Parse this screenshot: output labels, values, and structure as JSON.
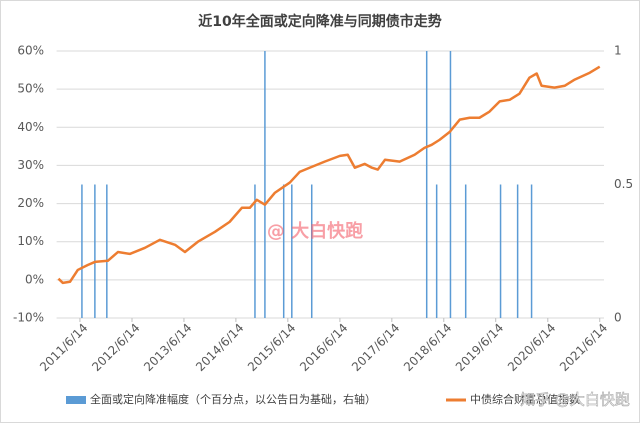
{
  "chart_data": {
    "type": "bar-line",
    "title": "近10年全面或定向降准与同期债市走势",
    "annotations": [
      "@ 大白快跑",
      "知乎 @大白快跑"
    ],
    "grid": true,
    "legend": "bottom",
    "xlim": [
      "2011/1/1",
      "2021/7/14"
    ],
    "xticks": [
      "2011/6/14",
      "2012/6/14",
      "2013/6/14",
      "2014/6/14",
      "2015/6/14",
      "2016/6/14",
      "2017/6/14",
      "2018/6/14",
      "2019/6/14",
      "2020/6/14",
      "2021/6/14"
    ],
    "ylim": [
      -10,
      60
    ],
    "yticks": [
      {
        "value": -10,
        "label": "-10%"
      },
      {
        "value": 0,
        "label": "0%"
      },
      {
        "value": 10,
        "label": "10%"
      },
      {
        "value": 20,
        "label": "20%"
      },
      {
        "value": 30,
        "label": "30%"
      },
      {
        "value": 40,
        "label": "40%"
      },
      {
        "value": 50,
        "label": "50%"
      },
      {
        "value": 60,
        "label": "60%"
      }
    ],
    "y2lim": [
      0,
      1
    ],
    "y2ticks": [
      0,
      0.5,
      1
    ],
    "series": [
      {
        "name": "全面或定向降准幅度（个百分点，以公告日为基础，右轴）",
        "type": "bar",
        "axis": "y2",
        "color": "#5b9bd5",
        "x": [
          "2011/6/28",
          "2011/9/27",
          "2011/12/20",
          "2014/10/26",
          "2015/1/4",
          "2015/5/16",
          "2015/7/12",
          "2015/11/29",
          "2018/2/14",
          "2018/4/25",
          "2018/7/31",
          "2018/11/15",
          "2019/7/18",
          "2019/11/15",
          "2020/2/21"
        ],
        "values": [
          0.5,
          0.5,
          0.5,
          0.5,
          1,
          0.5,
          0.5,
          0.5,
          1,
          0.5,
          1,
          0.5,
          0.5,
          0.5,
          0.5
        ]
      },
      {
        "name": "中债综合财富总值指数",
        "type": "line",
        "color": "#ed7d31",
        "x": [
          "2011/1/14",
          "2011/2/14",
          "2011/4/5",
          "2011/5/30",
          "2011/8/8",
          "2011/9/27",
          "2011/12/27",
          "2012/3/7",
          "2012/5/30",
          "2012/9/13",
          "2012/12/27",
          "2013/4/12",
          "2013/6/21",
          "2013/9/20",
          "2014/1/18",
          "2014/5/1",
          "2014/7/26",
          "2014/9/20",
          "2014/11/8",
          "2015/1/4",
          "2015/3/14",
          "2015/6/28",
          "2015/9/5",
          "2015/11/14",
          "2016/2/28",
          "2016/6/14",
          "2016/8/8",
          "2016/9/27",
          "2016/12/5",
          "2017/1/25",
          "2017/3/7",
          "2017/4/27",
          "2017/8/8",
          "2017/11/21",
          "2018/1/29",
          "2018/3/21",
          "2018/5/15",
          "2018/7/26",
          "2018/10/4",
          "2018/12/13",
          "2019/2/20",
          "2019/5/1",
          "2019/7/12",
          "2019/9/20",
          "2019/11/28",
          "2020/2/6",
          "2020/3/28",
          "2020/5/1",
          "2020/7/31",
          "2020/10/12",
          "2020/12/20",
          "2021/4/5",
          "2021/6/14"
        ],
        "values": [
          0.3,
          -0.8,
          -0.5,
          2.6,
          3.9,
          4.7,
          5.0,
          7.3,
          6.8,
          8.4,
          10.5,
          9.2,
          7.3,
          10.0,
          12.6,
          15.2,
          18.9,
          18.9,
          21.0,
          19.7,
          22.8,
          25.5,
          28.3,
          29.4,
          31.0,
          32.5,
          32.8,
          29.4,
          30.4,
          29.4,
          28.9,
          31.5,
          31.0,
          32.8,
          34.6,
          35.4,
          36.7,
          38.8,
          42.0,
          42.5,
          42.5,
          44.1,
          46.8,
          47.2,
          48.8,
          53.0,
          54.1,
          50.9,
          50.4,
          50.9,
          52.5,
          54.3,
          55.9
        ]
      }
    ]
  }
}
